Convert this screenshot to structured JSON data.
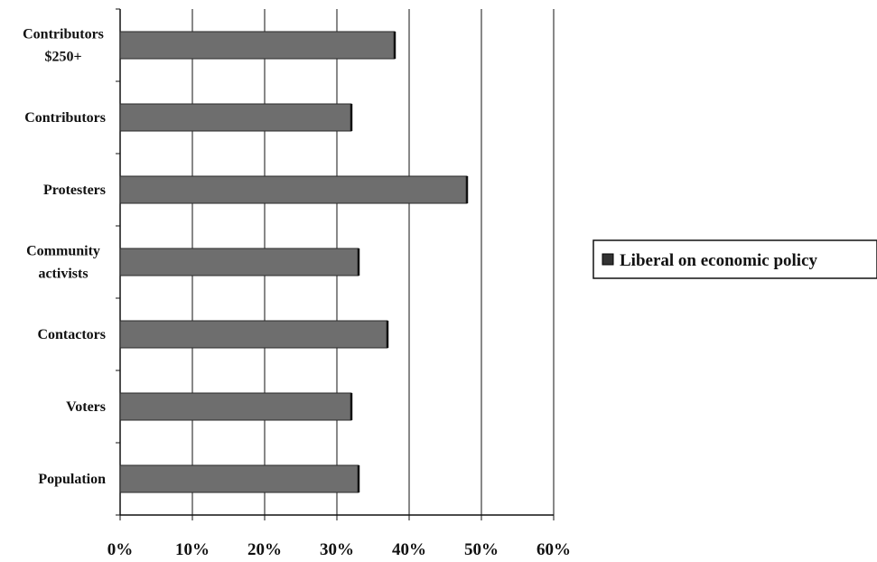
{
  "chart_data": {
    "type": "bar",
    "orientation": "horizontal",
    "categories": [
      "Contributors\n$250+",
      "Contributors",
      "Protesters",
      "Community\nactivists",
      "Contactors",
      "Voters",
      "Population"
    ],
    "series": [
      {
        "name": "Liberal on economic policy",
        "values": [
          38,
          32,
          48,
          33,
          37,
          32,
          33
        ]
      }
    ],
    "xlim": [
      0,
      60
    ],
    "x_ticks": [
      "0%",
      "10%",
      "20%",
      "30%",
      "40%",
      "50%",
      "60%"
    ],
    "grid": "vertical",
    "legend": "right",
    "colors": {
      "bar": "#6e6e6e",
      "bar_edge": "#2a2a2a",
      "grid": "#111111"
    }
  }
}
